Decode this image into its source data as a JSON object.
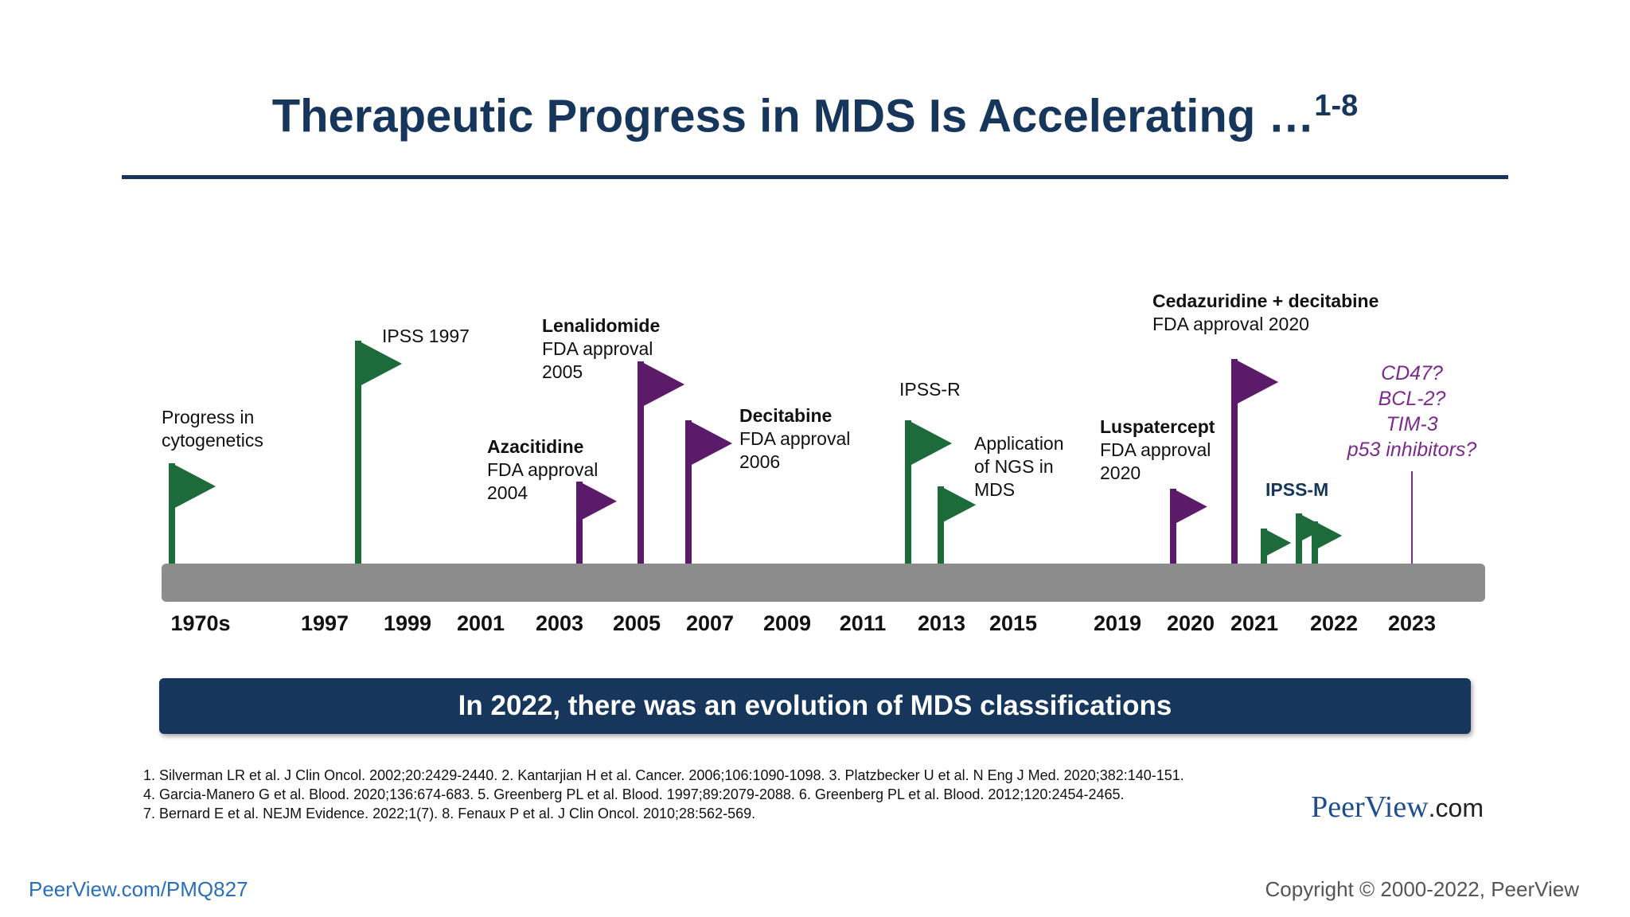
{
  "title": "Therapeutic Progress in MDS Is Accelerating …",
  "title_sup": "1-8",
  "colors": {
    "green": "#1d6b3a",
    "purple": "#5c1a6b",
    "bar": "#8c8c8c",
    "navy": "#16365c"
  },
  "labels": {
    "cyto": {
      "line1": "Progress in",
      "line2": "cytogenetics"
    },
    "ipss": {
      "line1": "IPSS 1997"
    },
    "aza": {
      "bold": "Azacitidine",
      "line1": "FDA approval",
      "line2": "2004"
    },
    "lena": {
      "bold": "Lenalidomide",
      "line1": "FDA approval",
      "line2": "2005"
    },
    "deci": {
      "bold": "Decitabine",
      "line1": "FDA approval",
      "line2": "2006"
    },
    "ipssr": {
      "line1": "IPSS-R"
    },
    "ngs": {
      "line1": "Application",
      "line2": "of NGS in",
      "line3": "MDS"
    },
    "lusp": {
      "bold": "Luspatercept",
      "line1": "FDA approval",
      "line2": "2020"
    },
    "ceda": {
      "bold": "Cedazuridine + decitabine",
      "line1": "FDA approval 2020"
    },
    "ipssm": {
      "line1": "IPSS-M"
    },
    "future": {
      "line1": "CD47?",
      "line2": "BCL-2?",
      "line3": "TIM-3",
      "line4": "p53 inhibitors?"
    }
  },
  "years": [
    "1970s",
    "1997",
    "1999",
    "2001",
    "2003",
    "2005",
    "2007",
    "2009",
    "2011",
    "2013",
    "2015",
    "2019",
    "2020",
    "2021",
    "2022",
    "2023"
  ],
  "banner": "In 2022, there was an evolution of MDS classifications",
  "references": [
    "1. Silverman LR et al. J Clin Oncol. 2002;20:2429-2440. 2. Kantarjian H et al. Cancer. 2006;106:1090-1098. 3. Platzbecker U et al. N Eng J Med. 2020;382:140-151.",
    "4. Garcia-Manero G et al. Blood. 2020;136:674-683. 5. Greenberg PL et al. Blood. 1997;89:2079-2088. 6. Greenberg PL et al. Blood. 2012;120:2454-2465.",
    "7. Bernard E et al. NEJM Evidence. 2022;1(7). 8. Fenaux P et al. J Clin Oncol. 2010;28:562-569."
  ],
  "logo": {
    "brand": "PeerView",
    "suffix": ".com"
  },
  "footer": {
    "left": "PeerView.com/PMQ827",
    "right": "Copyright © 2000-2022, PeerView"
  }
}
